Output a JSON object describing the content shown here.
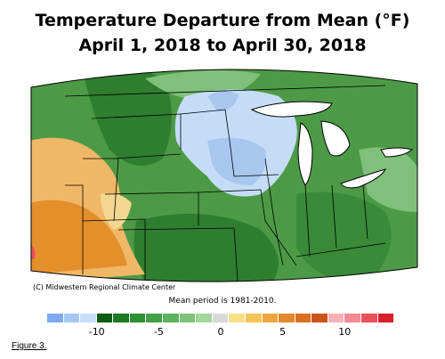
{
  "title_line1": "Temperature Departure from Mean (°F)",
  "title_line2": "April 1, 2018 to April 30, 2018",
  "credit": "(C) Midwestern Regional Climate Center",
  "mean_period": "Mean period is 1981-2010.",
  "figure_label": "Figure 3.",
  "legend": {
    "tick_labels": [
      "-10",
      "-5",
      "0",
      "5",
      "10"
    ],
    "tick_values": [
      -10,
      -5,
      0,
      5,
      10
    ],
    "range": [
      -14,
      14
    ],
    "colors": [
      "#7fa9ee",
      "#a8c8f4",
      "#c8def8",
      "#0f5d12",
      "#1f7a24",
      "#2f8f33",
      "#43a047",
      "#5ab45c",
      "#7cc47a",
      "#a3d69b",
      "#d9d9d9",
      "#f7e08a",
      "#f5c45a",
      "#eda640",
      "#e38a2e",
      "#d9701f",
      "#c9551a",
      "#f7b2b8",
      "#f48a94",
      "#ea4f5a",
      "#d81e28"
    ]
  },
  "map_colors": {
    "cold": "#c5dcf7",
    "colder": "#a9c6ef",
    "green_dark": "#2f7d2f",
    "green_mid": "#4c9a46",
    "green_light": "#7fc07a",
    "warm": "#f0b866",
    "warmer": "#e38f2c",
    "lake": "#ffffff",
    "border": "#000000"
  }
}
